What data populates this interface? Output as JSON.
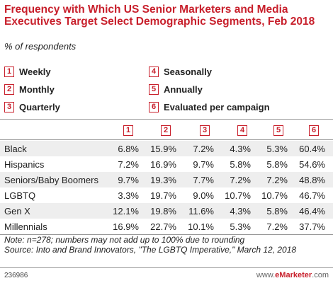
{
  "header": {
    "title": "Frequency with Which US Senior Marketers and Media Executives Target Select Demographic Segments, Feb 2018",
    "subtitle": "% of respondents"
  },
  "legend": [
    {
      "num": "1",
      "label": "Weekly"
    },
    {
      "num": "2",
      "label": "Monthly"
    },
    {
      "num": "3",
      "label": "Quarterly"
    },
    {
      "num": "4",
      "label": "Seasonally"
    },
    {
      "num": "5",
      "label": "Annually"
    },
    {
      "num": "6",
      "label": "Evaluated per campaign"
    }
  ],
  "columns": [
    "1",
    "2",
    "3",
    "4",
    "5",
    "6"
  ],
  "rows": [
    {
      "label": "Black",
      "values": [
        "6.8%",
        "15.9%",
        "7.2%",
        "4.3%",
        "5.3%",
        "60.4%"
      ]
    },
    {
      "label": "Hispanics",
      "values": [
        "7.2%",
        "16.9%",
        "9.7%",
        "5.8%",
        "5.8%",
        "54.6%"
      ]
    },
    {
      "label": "Seniors/Baby Boomers",
      "values": [
        "9.7%",
        "19.3%",
        "7.7%",
        "7.2%",
        "7.2%",
        "48.8%"
      ]
    },
    {
      "label": "LGBTQ",
      "values": [
        "3.3%",
        "19.7%",
        "9.0%",
        "10.7%",
        "10.7%",
        "46.7%"
      ]
    },
    {
      "label": "Gen X",
      "values": [
        "12.1%",
        "19.8%",
        "11.6%",
        "4.3%",
        "5.8%",
        "46.4%"
      ]
    },
    {
      "label": "Millennials",
      "values": [
        "16.9%",
        "22.7%",
        "10.1%",
        "5.3%",
        "7.2%",
        "37.7%"
      ]
    }
  ],
  "note": "Note: n=278; numbers may not add up to 100% due to rounding",
  "source": "Source: Into and Brand Innovators, \"The LGBTQ Imperative,\" March 12, 2018",
  "footer": {
    "id": "236986",
    "brand_prefix": "www.",
    "brand_name": "eMarketer",
    "brand_suffix": ".com"
  },
  "chart_data": {
    "type": "table",
    "title": "Frequency with Which US Senior Marketers and Media Executives Target Select Demographic Segments, Feb 2018",
    "subtitle": "% of respondents",
    "columns": [
      "Weekly",
      "Monthly",
      "Quarterly",
      "Seasonally",
      "Annually",
      "Evaluated per campaign"
    ],
    "rows": [
      "Black",
      "Hispanics",
      "Seniors/Baby Boomers",
      "LGBTQ",
      "Gen X",
      "Millennials"
    ],
    "values": [
      [
        6.8,
        15.9,
        7.2,
        4.3,
        5.3,
        60.4
      ],
      [
        7.2,
        16.9,
        9.7,
        5.8,
        5.8,
        54.6
      ],
      [
        9.7,
        19.3,
        7.7,
        7.2,
        7.2,
        48.8
      ],
      [
        3.3,
        19.7,
        9.0,
        10.7,
        10.7,
        46.7
      ],
      [
        12.1,
        19.8,
        11.6,
        4.3,
        5.8,
        46.4
      ],
      [
        16.9,
        22.7,
        10.1,
        5.3,
        7.2,
        37.7
      ]
    ],
    "unit": "%"
  },
  "colors": {
    "accent": "#c8202c",
    "shade": "#eeeeee"
  }
}
